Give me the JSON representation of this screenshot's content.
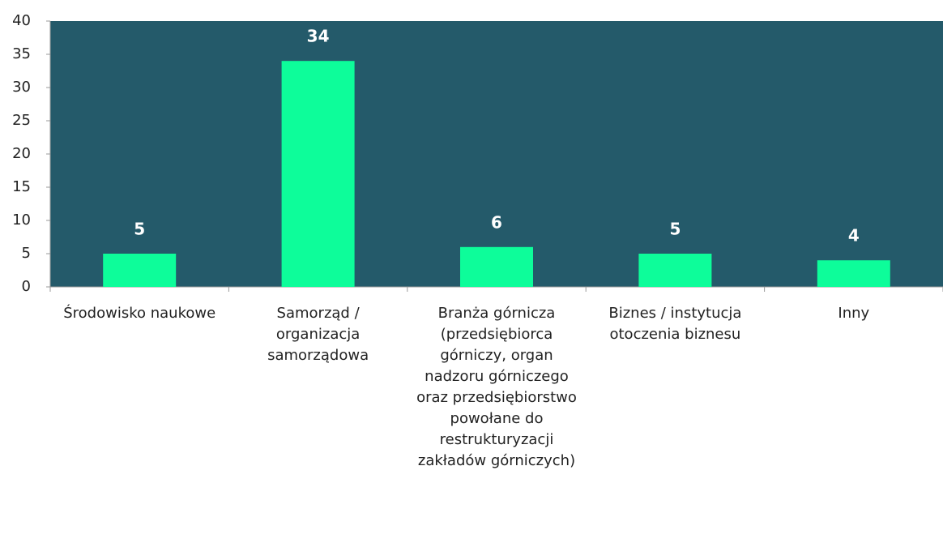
{
  "chart_data": {
    "type": "bar",
    "categories": [
      "Środowisko naukowe",
      "Samorząd / organizacja samorządowa",
      "Branża górnicza (przedsiębiorca górniczy, organ nadzoru górniczego oraz przedsiębiorstwo powołane do restrukturyzacji zakładów górniczych)",
      "Biznes / instytucja otoczenia biznesu",
      "Inny"
    ],
    "values": [
      5,
      34,
      6,
      5,
      4
    ],
    "color": "#0dfd9a",
    "background": "#245a6a",
    "ylim": [
      0,
      40
    ],
    "yticks": [
      0,
      5,
      10,
      15,
      20,
      25,
      30,
      35,
      40
    ]
  }
}
